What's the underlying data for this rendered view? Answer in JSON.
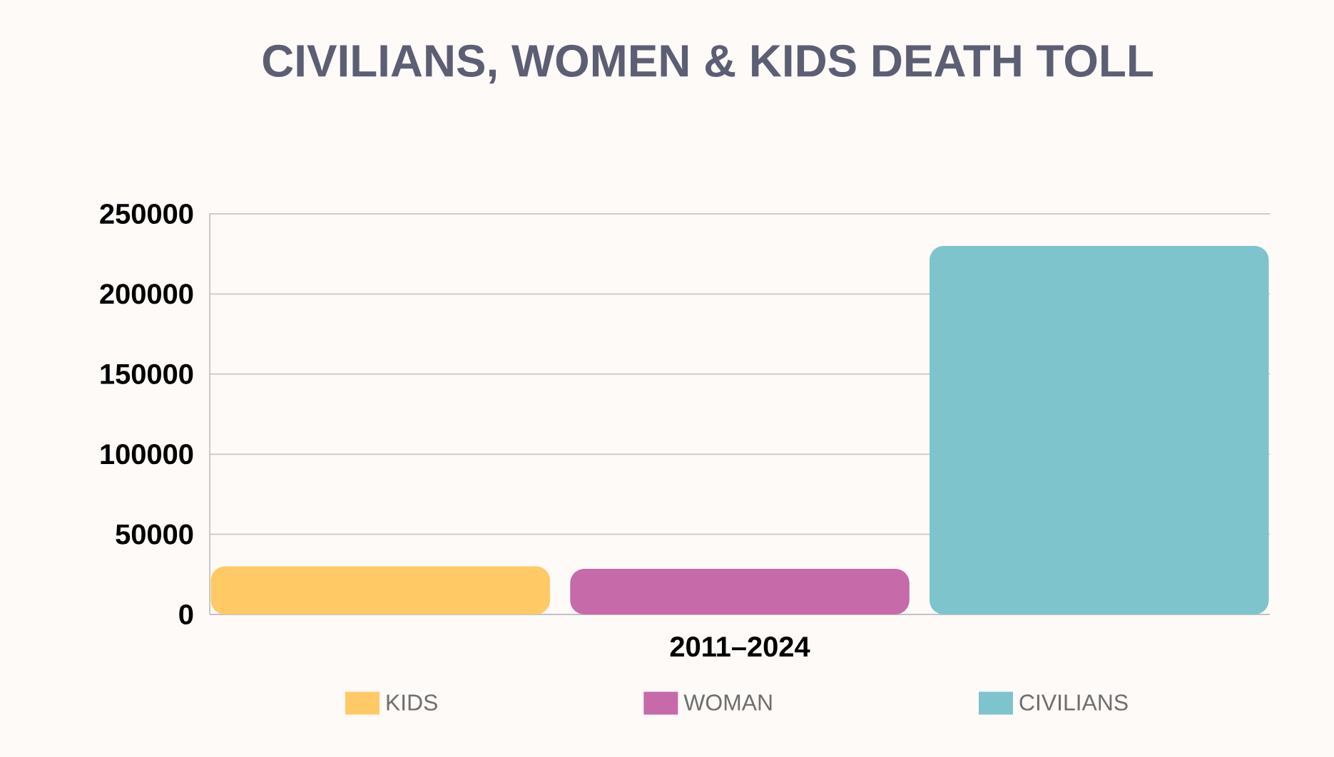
{
  "chart_data": {
    "type": "bar",
    "title": "CIVILIANS, WOMEN & KIDS DEATH TOLL",
    "categories": [
      "2011–2024"
    ],
    "series": [
      {
        "name": "KIDS",
        "color": "#ffc966",
        "values": [
          30000
        ]
      },
      {
        "name": "WOMAN",
        "color": "#c66aaa",
        "values": [
          28500
        ]
      },
      {
        "name": "CIVILIANS",
        "color": "#7ec4cc",
        "values": [
          230000
        ]
      }
    ],
    "ylim": [
      0,
      250000
    ],
    "yticks": [
      0,
      50000,
      100000,
      150000,
      200000,
      250000
    ],
    "grid": "y",
    "legend": "bottom"
  }
}
